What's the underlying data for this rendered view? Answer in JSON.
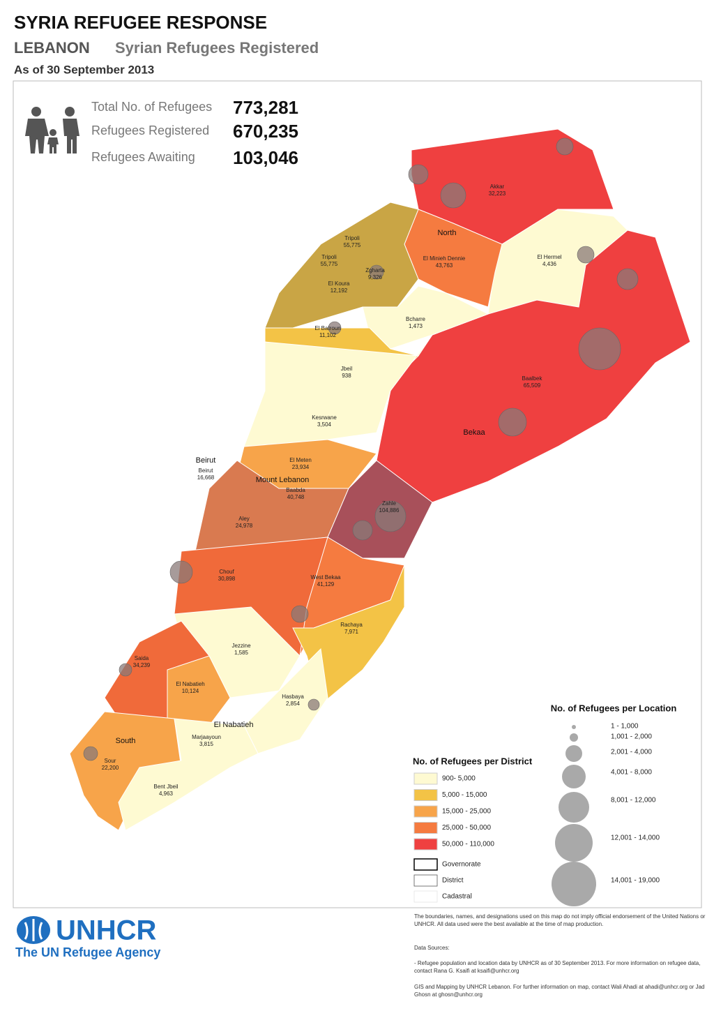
{
  "header": {
    "title": "SYRIA REFUGEE RESPONSE",
    "country": "LEBANON",
    "subtitle": "Syrian Refugees Registered",
    "date": "As of 30 September 2013"
  },
  "summary": {
    "rows": [
      {
        "label": "Total No. of Refugees",
        "value": "773,281"
      },
      {
        "label": "Refugees Registered",
        "value": "670,235"
      },
      {
        "label": "Refugees Awaiting",
        "value": "103,046"
      }
    ]
  },
  "map": {
    "governorates": [
      "North",
      "Bekaa",
      "Beirut",
      "Mount Lebanon",
      "El Nabatieh",
      "South"
    ],
    "districts": [
      {
        "name": "Akkar",
        "value": "32,223"
      },
      {
        "name": "Tripoli",
        "value": "55,775"
      },
      {
        "name": "Tripoli",
        "value": "55,775"
      },
      {
        "name": "El Minieh Dennie",
        "value": "43,763"
      },
      {
        "name": "El Hermel",
        "value": "4,436"
      },
      {
        "name": "Zgharta",
        "value": "9,326"
      },
      {
        "name": "El Koura",
        "value": "12,192"
      },
      {
        "name": "Bcharre",
        "value": "1,473"
      },
      {
        "name": "El Batroun",
        "value": "11,102"
      },
      {
        "name": "Jbeil",
        "value": "938"
      },
      {
        "name": "Baalbek",
        "value": "65,509"
      },
      {
        "name": "Kesrwane",
        "value": "3,504"
      },
      {
        "name": "El Meten",
        "value": "23,934"
      },
      {
        "name": "Beirut",
        "value": "16,668"
      },
      {
        "name": "Baabda",
        "value": "40,748"
      },
      {
        "name": "Zahle",
        "value": "104,886"
      },
      {
        "name": "Aley",
        "value": "24,978"
      },
      {
        "name": "Chouf",
        "value": "30,898"
      },
      {
        "name": "West Bekaa",
        "value": "41,129"
      },
      {
        "name": "Rachaya",
        "value": "7,971"
      },
      {
        "name": "Jezzine",
        "value": "1,585"
      },
      {
        "name": "Saida",
        "value": "34,239"
      },
      {
        "name": "El Nabatieh",
        "value": "10,124"
      },
      {
        "name": "Hasbaya",
        "value": "2,854"
      },
      {
        "name": "Marjaayoun",
        "value": "3,815"
      },
      {
        "name": "Sour",
        "value": "22,200"
      },
      {
        "name": "Bent Jbeil",
        "value": "4,963"
      }
    ]
  },
  "legend": {
    "district_title": "No. of Refugees per District",
    "district_classes": [
      {
        "label": "900- 5,000",
        "color": "#fefad2"
      },
      {
        "label": "5,000 - 15,000",
        "color": "#f3c346"
      },
      {
        "label": "15,000 - 25,000",
        "color": "#f7a44a"
      },
      {
        "label": "25,000 - 50,000",
        "color": "#f57b40"
      },
      {
        "label": "50,000 - 110,000",
        "color": "#ef4040"
      }
    ],
    "boundaries": [
      "Governorate",
      "District",
      "Cadastral"
    ],
    "location_title": "No. of Refugees per Location",
    "location_classes": [
      "1 - 1,000",
      "1,001 - 2,000",
      "2,001 - 4,000",
      "4,001 - 8,000",
      "8,001 - 12,000",
      "12,001 - 14,000",
      "14,001 - 19,000"
    ]
  },
  "logo": {
    "name": "UNHCR",
    "tagline": "The UN Refugee Agency"
  },
  "footer": {
    "disclaimer": "The boundaries, names, and designations used on this map do not imply official endorsement of the United Nations or UNHCR. All data used were the best available at the time of map production.",
    "sources_title": "Data Sources:",
    "sources": "- Refugee population and location data by UNHCR as of 30 September 2013. For more information on refugee data, contact Rana G. Ksaifi at ksaifi@unhcr.org",
    "credits": "GIS and Mapping by UNHCR Lebanon. For further information on map, contact Wali Ahadi at ahadi@unhcr.org or Jad Ghosn at ghosn@unhcr.org"
  }
}
